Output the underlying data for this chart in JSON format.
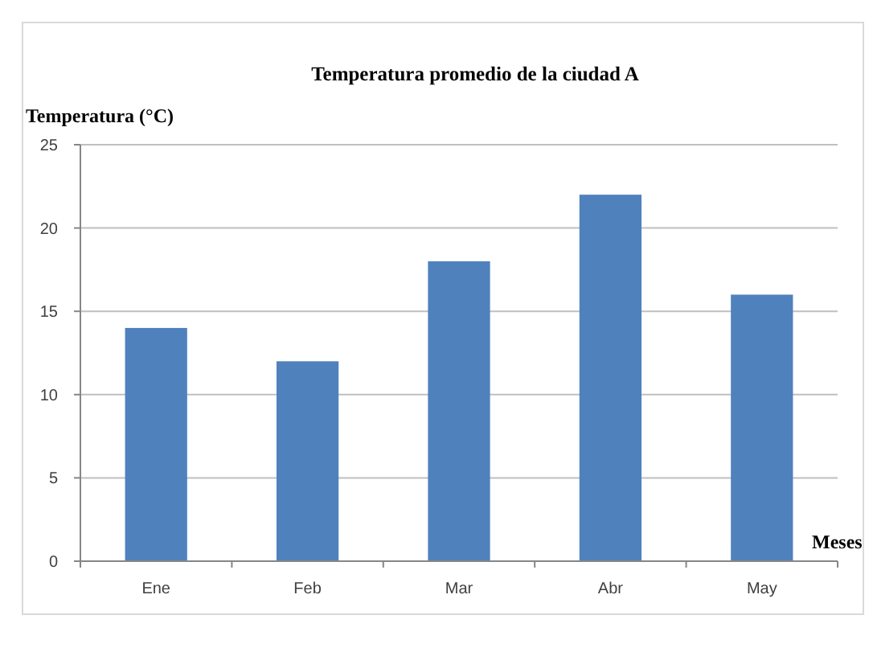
{
  "chart_data": {
    "type": "bar",
    "title": "Temperatura promedio de la ciudad A",
    "ylabel": "Temperatura (°C)",
    "xlabel": "Meses",
    "categories": [
      "Ene",
      "Feb",
      "Mar",
      "Abr",
      "May"
    ],
    "values": [
      14,
      12,
      18,
      22,
      16
    ],
    "color": "#4f81bd",
    "ylim": [
      0,
      25
    ],
    "yticks": [
      0,
      5,
      10,
      15,
      20,
      25
    ],
    "grid": "y"
  }
}
